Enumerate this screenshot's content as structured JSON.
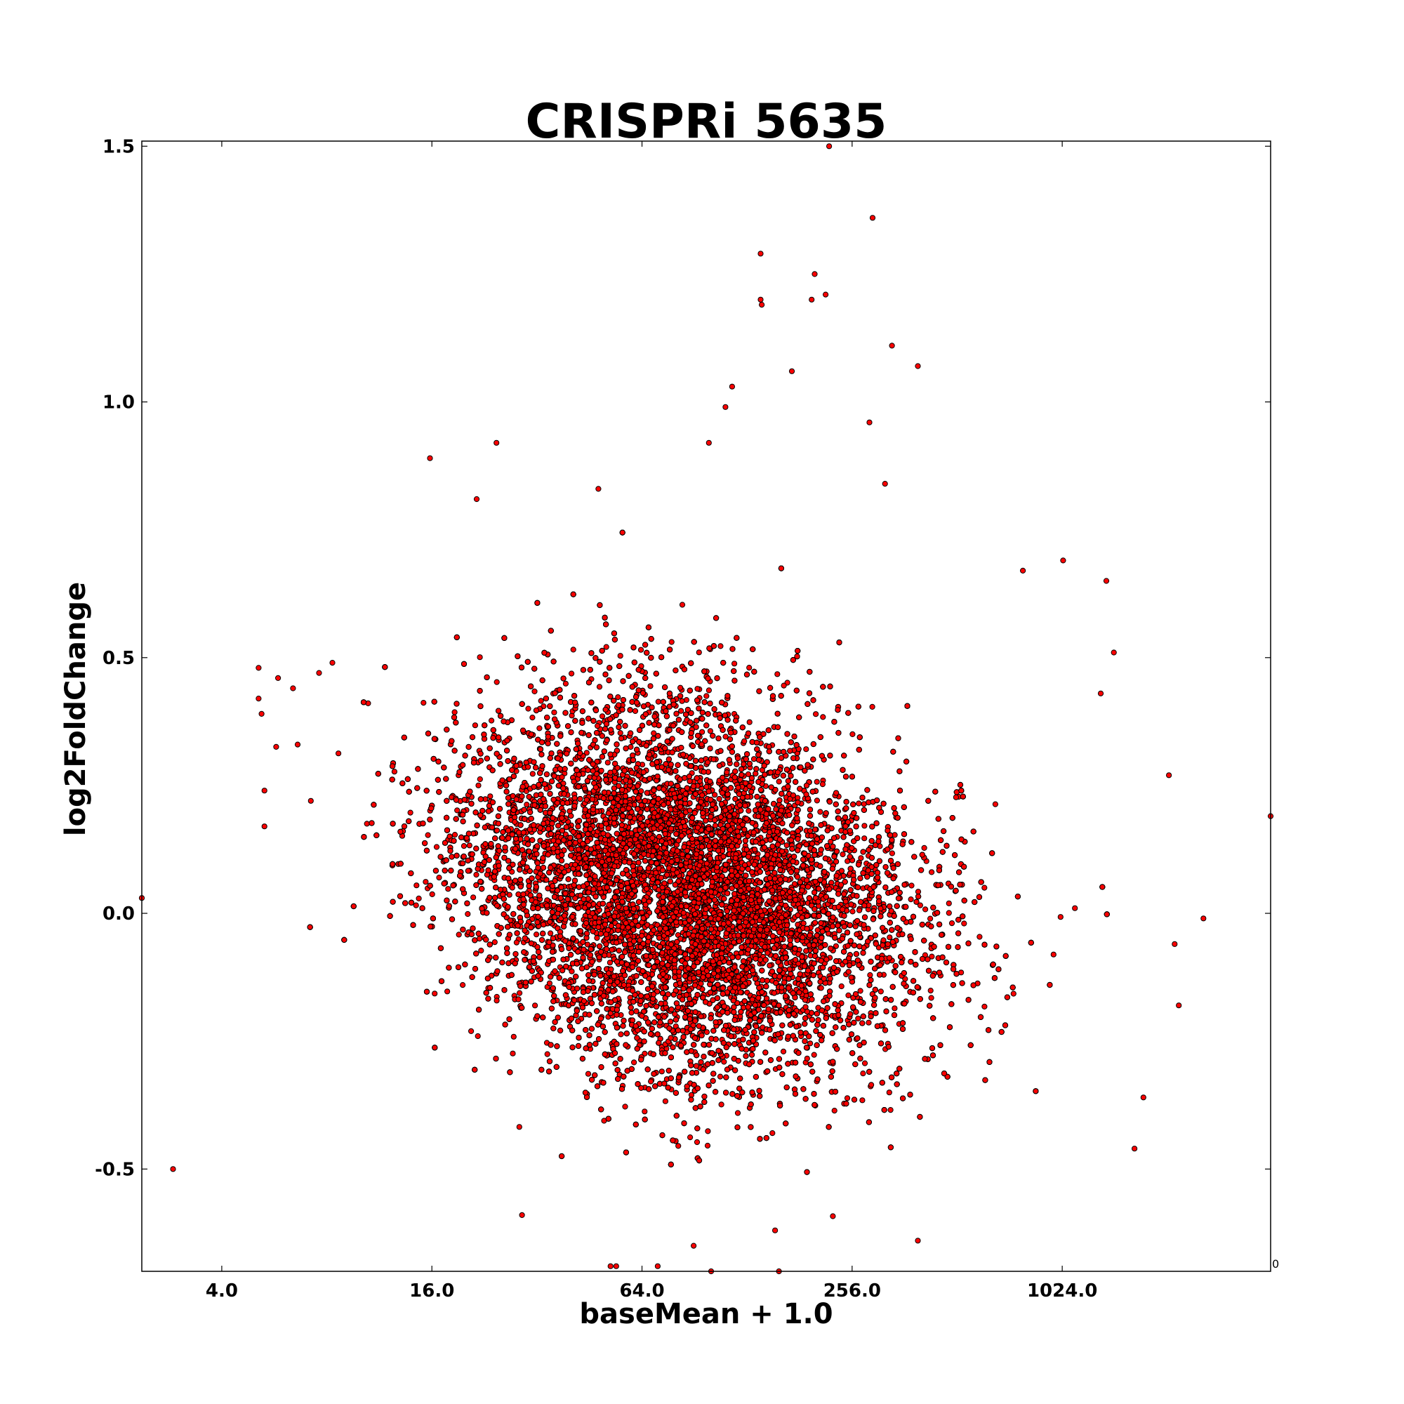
{
  "chart_data": {
    "type": "scatter",
    "title": "CRISPRi 5635",
    "xlabel": "baseMean + 1.0",
    "ylabel": "log2FoldChange",
    "x_scale": "log2",
    "xlim": [
      2.36,
      4050
    ],
    "ylim": [
      -0.7,
      1.51
    ],
    "xticks": [
      4,
      16,
      64,
      256,
      1024
    ],
    "xtick_labels": [
      "4.0",
      "16.0",
      "64.0",
      "256.0",
      "1024.0"
    ],
    "yticks": [
      -0.5,
      0.0,
      0.5,
      1.0,
      1.5
    ],
    "ytick_labels": [
      "-0.5",
      "0.0",
      "0.5",
      "1.0",
      "1.5"
    ],
    "corner_label": "0",
    "grid": false,
    "legend": "none",
    "marker_color": "#ff0000",
    "marker_edge_color": "#000000",
    "cluster": {
      "x_center": 85,
      "y_center": 0.0,
      "x_extent": [
        10,
        500
      ],
      "y_extent": [
        -0.6,
        0.6
      ],
      "point_count": 22000
    },
    "outliers": [
      {
        "x": 2.36,
        "y": 0.03
      },
      {
        "x": 4050,
        "y": 0.19
      },
      {
        "x": 2.9,
        "y": -0.5
      },
      {
        "x": 5.1,
        "y": 0.48
      },
      {
        "x": 5.1,
        "y": 0.42
      },
      {
        "x": 5.2,
        "y": 0.39
      },
      {
        "x": 5.3,
        "y": 0.24
      },
      {
        "x": 5.3,
        "y": 0.17
      },
      {
        "x": 5.8,
        "y": 0.46
      },
      {
        "x": 6.4,
        "y": 0.44
      },
      {
        "x": 6.6,
        "y": 0.33
      },
      {
        "x": 7.2,
        "y": 0.22
      },
      {
        "x": 7.6,
        "y": 0.47
      },
      {
        "x": 8.3,
        "y": 0.49
      },
      {
        "x": 15.8,
        "y": 0.89
      },
      {
        "x": 24.5,
        "y": 0.92
      },
      {
        "x": 21.5,
        "y": 0.81
      },
      {
        "x": 48.0,
        "y": 0.83
      },
      {
        "x": 99.5,
        "y": 0.92
      },
      {
        "x": 116.0,
        "y": 1.03
      },
      {
        "x": 111.0,
        "y": 0.99
      },
      {
        "x": 140.0,
        "y": 1.29
      },
      {
        "x": 141.0,
        "y": 1.19
      },
      {
        "x": 140.0,
        "y": 1.2
      },
      {
        "x": 172.0,
        "y": 1.06
      },
      {
        "x": 200.0,
        "y": 1.25
      },
      {
        "x": 196.0,
        "y": 1.2
      },
      {
        "x": 215.0,
        "y": 1.21
      },
      {
        "x": 220.0,
        "y": 1.5
      },
      {
        "x": 293.0,
        "y": 1.36
      },
      {
        "x": 287.0,
        "y": 0.96
      },
      {
        "x": 333.0,
        "y": 1.11
      },
      {
        "x": 395.0,
        "y": 1.07
      },
      {
        "x": 318.0,
        "y": 0.84
      },
      {
        "x": 790.0,
        "y": 0.67
      },
      {
        "x": 1030.0,
        "y": 0.69
      },
      {
        "x": 1370.0,
        "y": 0.65
      },
      {
        "x": 1440.0,
        "y": 0.51
      },
      {
        "x": 1320.0,
        "y": 0.43
      },
      {
        "x": 2600.0,
        "y": -0.01
      },
      {
        "x": 2150.0,
        "y": -0.06
      },
      {
        "x": 2210.0,
        "y": -0.18
      },
      {
        "x": 2070.0,
        "y": 0.27
      },
      {
        "x": 1650.0,
        "y": -0.46
      },
      {
        "x": 1750.0,
        "y": -0.36
      },
      {
        "x": 395.0,
        "y": -0.64
      },
      {
        "x": 52.0,
        "y": -0.69
      },
      {
        "x": 71.0,
        "y": -0.69
      },
      {
        "x": 54.0,
        "y": -0.69
      },
      {
        "x": 101.0,
        "y": -0.7
      },
      {
        "x": 158.0,
        "y": -0.7
      },
      {
        "x": 90.0,
        "y": -0.65
      },
      {
        "x": 29.0,
        "y": -0.59
      },
      {
        "x": 154.0,
        "y": -0.62
      }
    ]
  }
}
